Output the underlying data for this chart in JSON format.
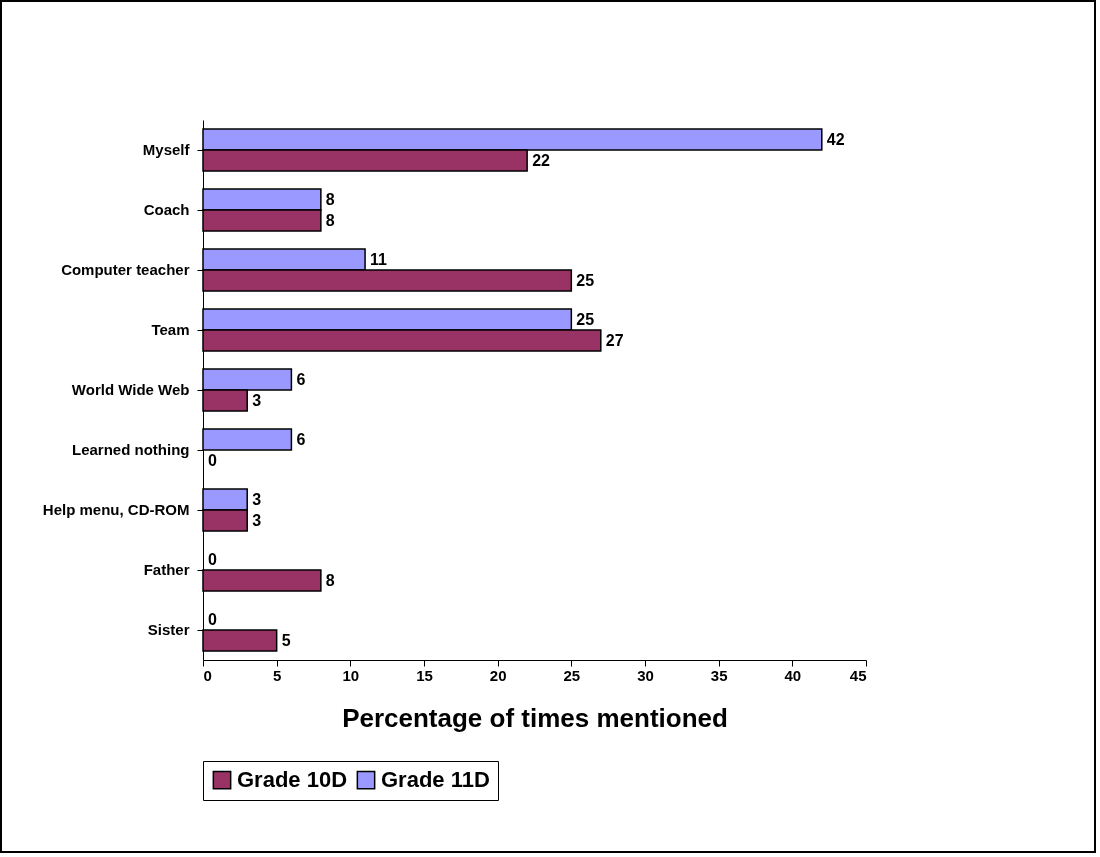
{
  "chart_data": {
    "type": "bar",
    "orientation": "horizontal",
    "xlabel": "Percentage of times mentioned",
    "categories": [
      "Myself",
      "Coach",
      "Computer teacher",
      "Team",
      "World Wide Web",
      "Learned nothing",
      "Help menu, CD-ROM",
      "Father",
      "Sister"
    ],
    "series": [
      {
        "name": "Grade 11D",
        "color": "#9999ff",
        "values": [
          42,
          8,
          11,
          25,
          6,
          6,
          3,
          0,
          0
        ]
      },
      {
        "name": "Grade 10D",
        "color": "#993366",
        "values": [
          22,
          8,
          25,
          27,
          3,
          0,
          3,
          8,
          5
        ]
      }
    ],
    "xlim": [
      0,
      45
    ],
    "xticks": [
      0,
      5,
      10,
      15,
      20,
      25,
      30,
      35,
      40,
      45
    ],
    "data_labels": true,
    "legend": "bottom",
    "grid": false
  }
}
